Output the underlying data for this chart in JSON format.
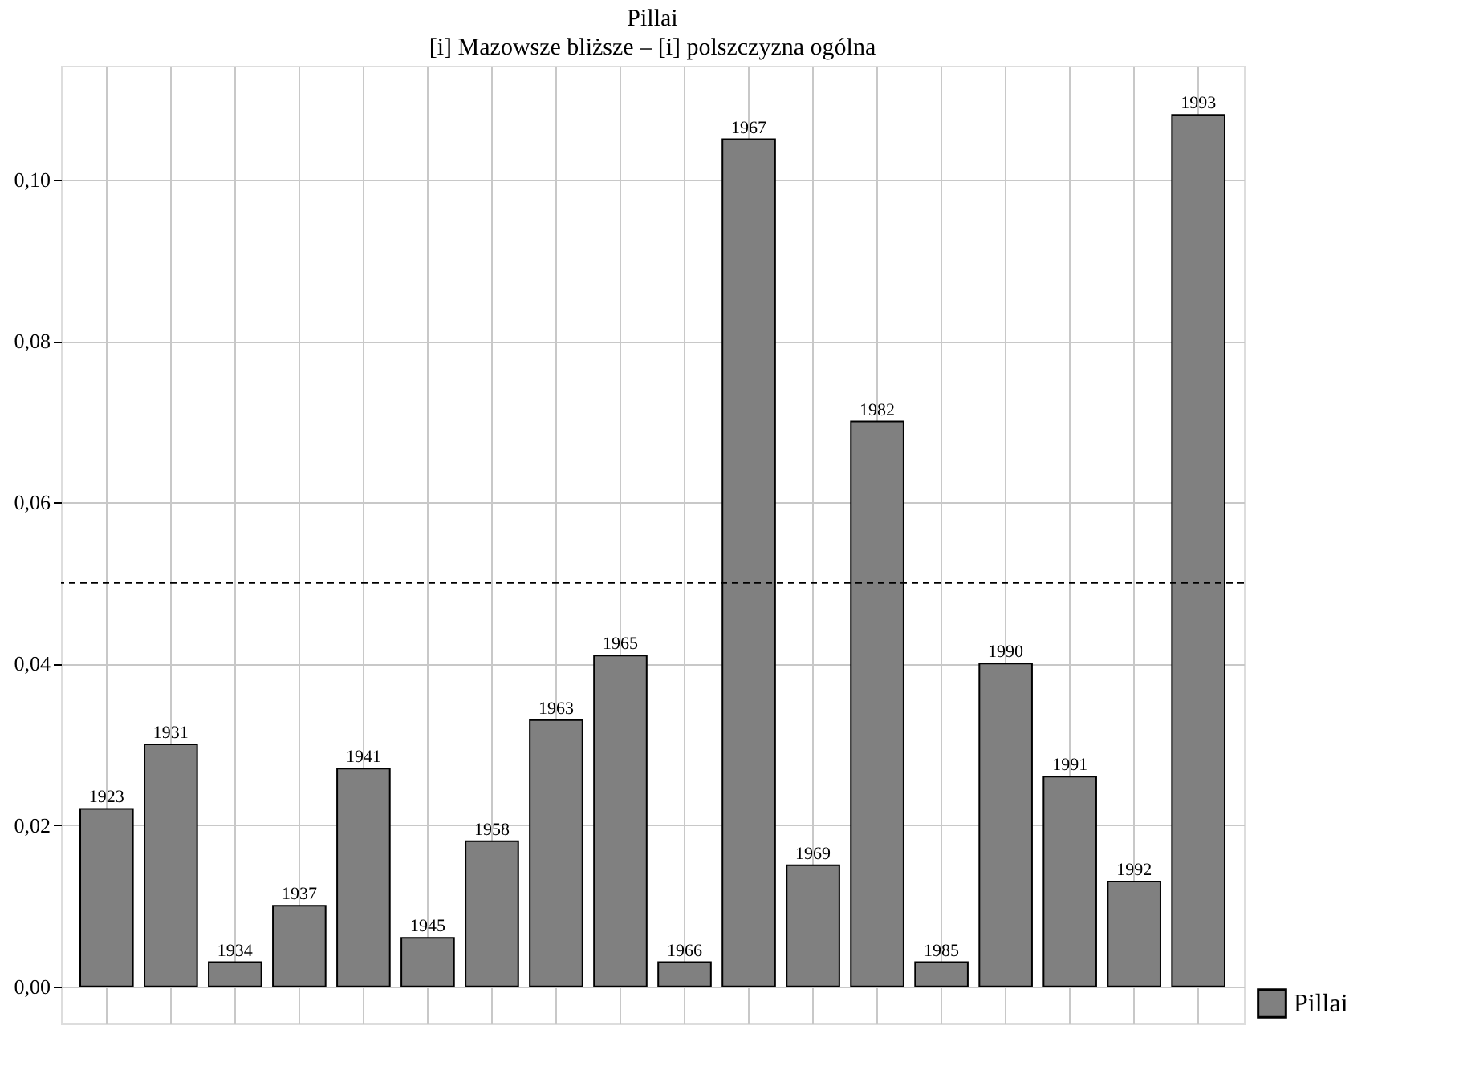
{
  "chart_data": {
    "type": "bar",
    "title": "Pillai",
    "subtitle": "[i] Mazowsze bliższe – [i] polszczyzna ogólna",
    "categories": [
      "1923",
      "1931",
      "1934",
      "1937",
      "1941",
      "1945",
      "1958",
      "1963",
      "1965",
      "1966",
      "1967",
      "1969",
      "1982",
      "1985",
      "1990",
      "1991",
      "1992",
      "1993"
    ],
    "series": [
      {
        "name": "Pillai",
        "color": "#808080",
        "values": [
          0.022,
          0.03,
          0.003,
          0.01,
          0.027,
          0.006,
          0.018,
          0.033,
          0.041,
          0.003,
          0.105,
          0.015,
          0.07,
          0.003,
          0.04,
          0.026,
          0.013,
          0.108
        ]
      }
    ],
    "ylim": [
      -0.0046,
      0.1141
    ],
    "yticks": [
      {
        "value": 0,
        "label": "0,00"
      },
      {
        "value": 0.02,
        "label": "0,02"
      },
      {
        "value": 0.04,
        "label": "0,04"
      },
      {
        "value": 0.06,
        "label": "0,06"
      },
      {
        "value": 0.08,
        "label": "0,08"
      },
      {
        "value": 0.1,
        "label": "0,10"
      }
    ],
    "ref_lines": [
      {
        "axis": "y",
        "value": 0.05,
        "label": null,
        "color": "#000000",
        "line_style": "dashed"
      }
    ],
    "grid": true,
    "legend": "bottom right",
    "tick_labels": "y"
  }
}
